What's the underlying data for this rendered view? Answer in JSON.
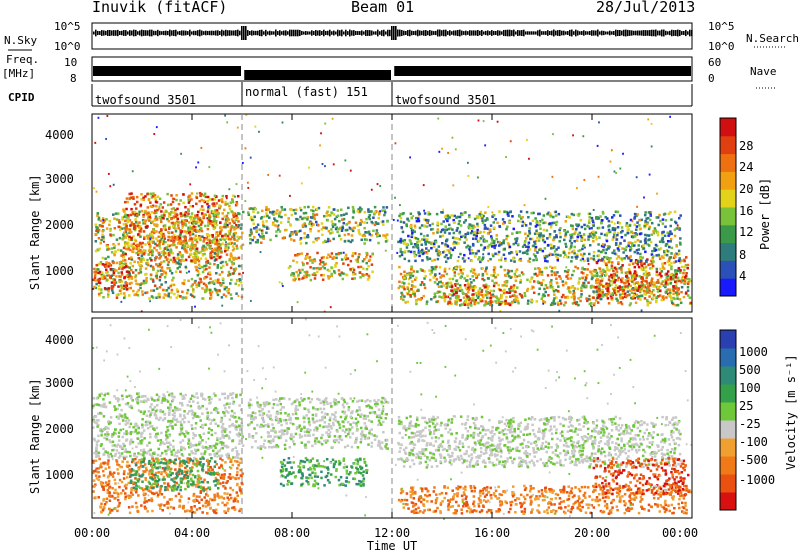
{
  "header": {
    "station": "Inuvik (fitACF)",
    "beam": "Beam 01",
    "date": "28/Jul/2013"
  },
  "top_panels": {
    "nsky_label": "N.Sky",
    "nsky_ticks": [
      "10^5",
      "10^0"
    ],
    "nsearch_label": "N.Search",
    "nsearch_ticks": [
      "10^5",
      "10^0"
    ],
    "freq_label_top": "Freq.",
    "freq_label_bottom": "[MHz]",
    "freq_ticks": [
      "10",
      "8"
    ],
    "nave_label": "Nave",
    "nave_ticks": [
      "60",
      "0"
    ],
    "cpid_label": "CPID",
    "cpid_segments": [
      {
        "name": "twofsound 3501",
        "start": "00:00",
        "end": "06:00"
      },
      {
        "name": "normal (fast) 151",
        "start": "06:00",
        "end": "12:00"
      },
      {
        "name": "twofsound 3501",
        "start": "12:00",
        "end": "24:00"
      }
    ]
  },
  "colorbars": {
    "power": {
      "label": "Power [dB]",
      "ticks": [
        "28",
        "24",
        "20",
        "16",
        "12",
        "8",
        "4"
      ],
      "colors": [
        "#1a1aff",
        "#2b50b8",
        "#2f7c7c",
        "#3a9a4a",
        "#7ac23a",
        "#e2d21a",
        "#f0a010",
        "#ee7010",
        "#e04010",
        "#d01010"
      ]
    },
    "velocity": {
      "label": "Velocity [m s⁻¹]",
      "ticks": [
        "1000",
        "500",
        "100",
        "25",
        "-25",
        "-100",
        "-500",
        "-1000"
      ],
      "colors": [
        "#2a3fb0",
        "#2a6cb0",
        "#2f8a78",
        "#35a04a",
        "#6ec83a",
        "#c8c8c8",
        "#f0a030",
        "#f07a18",
        "#ea5010",
        "#d81010"
      ]
    }
  },
  "axes": {
    "ylabel": "Slant Range [km]",
    "xlabel": "Time UT",
    "xticks": [
      "00:00",
      "04:00",
      "08:00",
      "12:00",
      "16:00",
      "20:00",
      "00:00"
    ],
    "yticks": [
      "1000",
      "2000",
      "3000",
      "4000"
    ]
  },
  "chart_data": [
    {
      "type": "heatmap",
      "title": "Power [dB]",
      "x_range_hours": [
        0,
        24
      ],
      "ylim": [
        180,
        4500
      ],
      "cpid_boundaries_hours": [
        6,
        12
      ],
      "bands": [
        {
          "t0": 0.1,
          "t1": 6,
          "r0": 500,
          "r1": 2400,
          "level": 0.55
        },
        {
          "t0": 1.2,
          "t1": 5.8,
          "r0": 1300,
          "r1": 2800,
          "level": 0.7
        },
        {
          "t0": 0,
          "t1": 1.5,
          "r0": 700,
          "r1": 1300,
          "level": 0.85
        },
        {
          "t0": 6.2,
          "t1": 11.8,
          "r0": 1700,
          "r1": 2500,
          "level": 0.45
        },
        {
          "t0": 7.8,
          "t1": 11.2,
          "r0": 900,
          "r1": 1500,
          "level": 0.6
        },
        {
          "t0": 12.2,
          "t1": 23.9,
          "r0": 350,
          "r1": 1200,
          "level": 0.55
        },
        {
          "t0": 14.0,
          "t1": 17.0,
          "r0": 350,
          "r1": 800,
          "level": 0.7
        },
        {
          "t0": 20.0,
          "t1": 23.8,
          "r0": 500,
          "r1": 1400,
          "level": 0.75
        },
        {
          "t0": 12.2,
          "t1": 23.5,
          "r0": 1300,
          "r1": 2400,
          "level": 0.35
        }
      ]
    },
    {
      "type": "heatmap",
      "title": "Velocity [m s⁻¹]",
      "x_range_hours": [
        0,
        24
      ],
      "ylim": [
        180,
        4500
      ],
      "cpid_boundaries_hours": [
        6,
        12
      ],
      "bands": [
        {
          "t0": 0,
          "t1": 6,
          "r0": 1500,
          "r1": 2900,
          "vel": "grey"
        },
        {
          "t0": 0,
          "t1": 6,
          "r0": 300,
          "r1": 1500,
          "vel": "orange"
        },
        {
          "t0": 1.5,
          "t1": 5.0,
          "r0": 800,
          "r1": 1500,
          "vel": "green"
        },
        {
          "t0": 6.2,
          "t1": 11.8,
          "r0": 1700,
          "r1": 2800,
          "vel": "grey"
        },
        {
          "t0": 7.5,
          "t1": 11.0,
          "r0": 900,
          "r1": 1500,
          "vel": "green"
        },
        {
          "t0": 12.2,
          "t1": 23.9,
          "r0": 300,
          "r1": 900,
          "vel": "orange"
        },
        {
          "t0": 12.2,
          "t1": 23.5,
          "r0": 1300,
          "r1": 2400,
          "vel": "grey"
        },
        {
          "t0": 20.0,
          "t1": 23.8,
          "r0": 700,
          "r1": 1500,
          "vel": "red"
        }
      ]
    }
  ]
}
